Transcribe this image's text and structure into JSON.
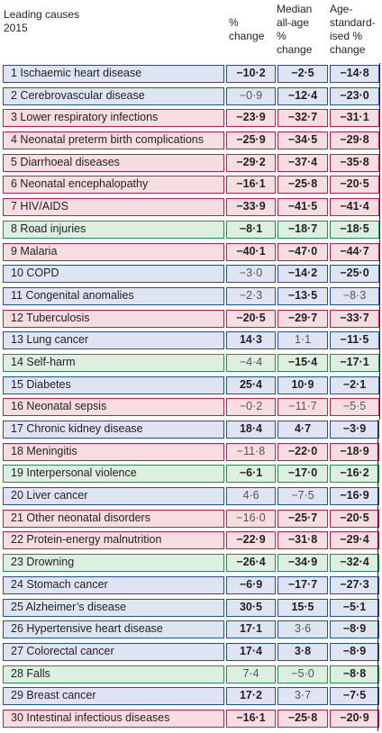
{
  "headers": {
    "cause": [
      "Leading causes",
      "2015"
    ],
    "pct_change": [
      "%",
      "change"
    ],
    "median_change": [
      "Median",
      "all-age",
      "%",
      "change"
    ],
    "age_std_change": [
      "Age-",
      "standard-",
      "ised %",
      "change"
    ]
  },
  "colors": {
    "blue": "#2b4c95",
    "red": "#bd1e48",
    "green": "#2a8a4c"
  },
  "rows": [
    {
      "label": "1 Ischaemic heart disease",
      "group": "blue",
      "pct": "−10·2",
      "pct_sig": true,
      "median": "−2·5",
      "median_sig": true,
      "age": "−14·8",
      "age_sig": true
    },
    {
      "label": "2 Cerebrovascular disease",
      "group": "blue",
      "pct": "−0·9",
      "pct_sig": false,
      "median": "−12·4",
      "median_sig": true,
      "age": "−23·0",
      "age_sig": true
    },
    {
      "label": "3 Lower respiratory infections",
      "group": "red",
      "pct": "−23·9",
      "pct_sig": true,
      "median": "−32·7",
      "median_sig": true,
      "age": "−31·1",
      "age_sig": true
    },
    {
      "label": "4 Neonatal preterm birth complications",
      "group": "red",
      "pct": "−25·9",
      "pct_sig": true,
      "median": "−34·5",
      "median_sig": true,
      "age": "−29·8",
      "age_sig": true
    },
    {
      "label": "5 Diarrhoeal diseases",
      "group": "red",
      "pct": "−29·2",
      "pct_sig": true,
      "median": "−37·4",
      "median_sig": true,
      "age": "−35·8",
      "age_sig": true
    },
    {
      "label": "6 Neonatal encephalopathy",
      "group": "red",
      "pct": "−16·1",
      "pct_sig": true,
      "median": "−25·8",
      "median_sig": true,
      "age": "−20·5",
      "age_sig": true
    },
    {
      "label": "7 HIV/AIDS",
      "group": "red",
      "pct": "−33·9",
      "pct_sig": true,
      "median": "−41·5",
      "median_sig": true,
      "age": "−41·4",
      "age_sig": true
    },
    {
      "label": "8 Road injuries",
      "group": "green",
      "pct": "−8·1",
      "pct_sig": true,
      "median": "−18·7",
      "median_sig": true,
      "age": "−18·5",
      "age_sig": true
    },
    {
      "label": "9 Malaria",
      "group": "red",
      "pct": "−40·1",
      "pct_sig": true,
      "median": "−47·0",
      "median_sig": true,
      "age": "−44·7",
      "age_sig": true
    },
    {
      "label": "10 COPD",
      "group": "blue",
      "pct": "−3·0",
      "pct_sig": false,
      "median": "−14·2",
      "median_sig": true,
      "age": "−25·0",
      "age_sig": true
    },
    {
      "label": "11 Congenital anomalies",
      "group": "blue",
      "pct": "−2·3",
      "pct_sig": false,
      "median": "−13·5",
      "median_sig": true,
      "age": "−8·3",
      "age_sig": false
    },
    {
      "label": "12 Tuberculosis",
      "group": "red",
      "pct": "−20·5",
      "pct_sig": true,
      "median": "−29·7",
      "median_sig": true,
      "age": "−33·7",
      "age_sig": true
    },
    {
      "label": "13 Lung cancer",
      "group": "blue",
      "pct": "14·3",
      "pct_sig": true,
      "median": "1·1",
      "median_sig": false,
      "age": "−11·5",
      "age_sig": true
    },
    {
      "label": "14 Self-harm",
      "group": "green",
      "pct": "−4·4",
      "pct_sig": false,
      "median": "−15·4",
      "median_sig": true,
      "age": "−17·1",
      "age_sig": true
    },
    {
      "label": "15 Diabetes",
      "group": "blue",
      "pct": "25·4",
      "pct_sig": true,
      "median": "10·9",
      "median_sig": true,
      "age": "−2·1",
      "age_sig": true
    },
    {
      "label": "16 Neonatal sepsis",
      "group": "red",
      "pct": "−0·2",
      "pct_sig": false,
      "median": "−11·7",
      "median_sig": false,
      "age": "−5·5",
      "age_sig": false
    },
    {
      "label": "17 Chronic kidney disease",
      "group": "blue",
      "pct": "18·4",
      "pct_sig": true,
      "median": "4·7",
      "median_sig": true,
      "age": "−3·9",
      "age_sig": true
    },
    {
      "label": "18 Meningitis",
      "group": "red",
      "pct": "−11·8",
      "pct_sig": false,
      "median": "−22·0",
      "median_sig": true,
      "age": "−18·9",
      "age_sig": true
    },
    {
      "label": "19 Interpersonal violence",
      "group": "green",
      "pct": "−6·1",
      "pct_sig": true,
      "median": "−17·0",
      "median_sig": true,
      "age": "−16·2",
      "age_sig": true
    },
    {
      "label": "20 Liver cancer",
      "group": "blue",
      "pct": "4·6",
      "pct_sig": false,
      "median": "−7·5",
      "median_sig": false,
      "age": "−16·9",
      "age_sig": true
    },
    {
      "label": "21 Other neonatal disorders",
      "group": "red",
      "pct": "−16·0",
      "pct_sig": false,
      "median": "−25·7",
      "median_sig": true,
      "age": "−20·5",
      "age_sig": true
    },
    {
      "label": "22 Protein-energy malnutrition",
      "group": "red",
      "pct": "−22·9",
      "pct_sig": true,
      "median": "−31·8",
      "median_sig": true,
      "age": "−29·4",
      "age_sig": true
    },
    {
      "label": "23 Drowning",
      "group": "green",
      "pct": "−26·4",
      "pct_sig": true,
      "median": "−34·9",
      "median_sig": true,
      "age": "−32·4",
      "age_sig": true
    },
    {
      "label": "24 Stomach cancer",
      "group": "blue",
      "pct": "−6·9",
      "pct_sig": true,
      "median": "−17·7",
      "median_sig": true,
      "age": "−27·3",
      "age_sig": true
    },
    {
      "label": "25 Alzheimer’s disease",
      "group": "blue",
      "pct": "30·5",
      "pct_sig": true,
      "median": "15·5",
      "median_sig": true,
      "age": "−5·1",
      "age_sig": true
    },
    {
      "label": "26 Hypertensive heart disease",
      "group": "blue",
      "pct": "17·1",
      "pct_sig": true,
      "median": "3·6",
      "median_sig": false,
      "age": "−8·9",
      "age_sig": true
    },
    {
      "label": "27 Colorectal cancer",
      "group": "blue",
      "pct": "17·4",
      "pct_sig": true,
      "median": "3·8",
      "median_sig": true,
      "age": "−8·9",
      "age_sig": true
    },
    {
      "label": "28 Falls",
      "group": "green",
      "pct": "7·4",
      "pct_sig": false,
      "median": "−5·0",
      "median_sig": false,
      "age": "−8·8",
      "age_sig": true
    },
    {
      "label": "29 Breast cancer",
      "group": "blue",
      "pct": "17·2",
      "pct_sig": true,
      "median": "3·7",
      "median_sig": false,
      "age": "−7·5",
      "age_sig": true
    },
    {
      "label": "30 Intestinal infectious diseases",
      "group": "red",
      "pct": "−16·1",
      "pct_sig": true,
      "median": "−25·8",
      "median_sig": true,
      "age": "−20·9",
      "age_sig": true
    }
  ]
}
